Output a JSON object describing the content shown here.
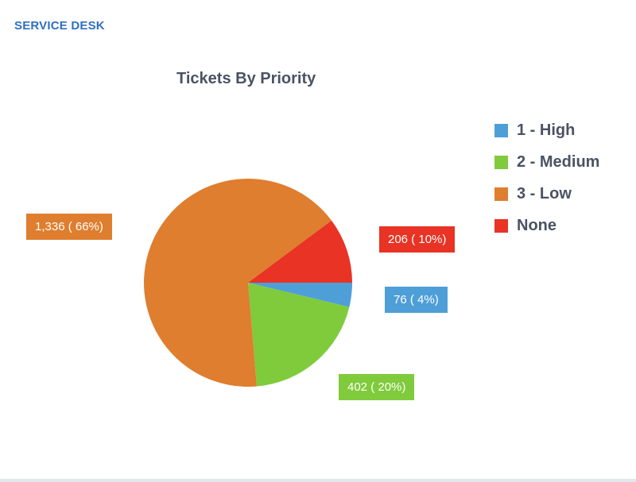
{
  "header": {
    "title": "SERVICE DESK"
  },
  "chart_data": {
    "type": "pie",
    "title": "Tickets By Priority",
    "legend_position": "right",
    "slices": [
      {
        "name": "1 - High",
        "value": 76,
        "percent_label": "4%",
        "color": "#4e9fd8",
        "label": "76 ( 4%)"
      },
      {
        "name": "2 - Medium",
        "value": 402,
        "percent_label": "20%",
        "color": "#7fcb3c",
        "label": "402 ( 20%)"
      },
      {
        "name": "3 - Low",
        "value": 1336,
        "percent_label": "66%",
        "color": "#de7e2e",
        "label": "1,336 ( 66%)"
      },
      {
        "name": "None",
        "value": 206,
        "percent_label": "10%",
        "color": "#e83325",
        "label": "206 ( 10%)"
      }
    ]
  }
}
